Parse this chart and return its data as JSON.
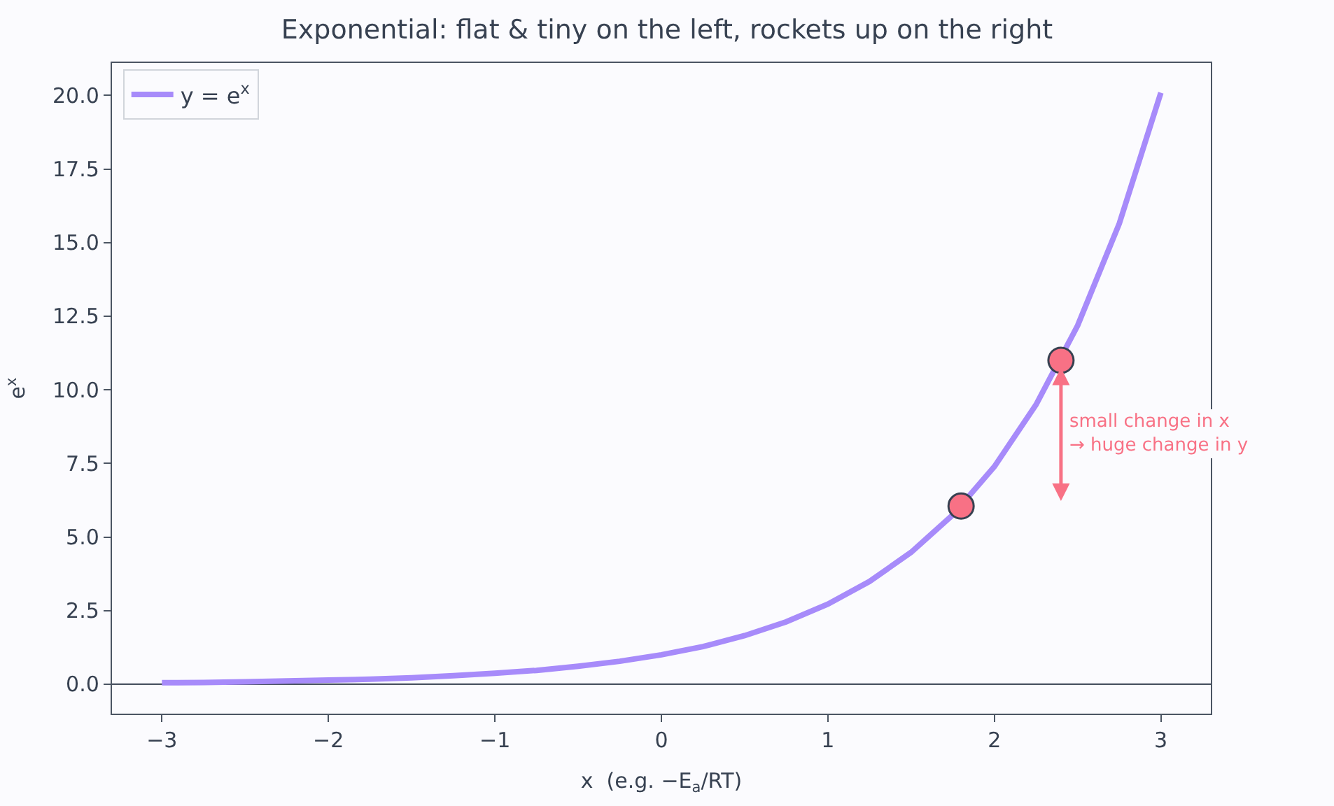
{
  "chart_data": {
    "type": "line",
    "title": "Exponential: flat & tiny on the left, rockets up on the right",
    "xlabel": "x  (e.g. −E$_{a}$/RT)",
    "ylabel": "e$^{x}$",
    "series": [
      {
        "name": "y = e$^{x}$",
        "color": "#a78bfa",
        "x": [
          -3,
          -2.75,
          -2.5,
          -2.25,
          -2,
          -1.75,
          -1.5,
          -1.25,
          -1,
          -0.75,
          -0.5,
          -0.25,
          0,
          0.25,
          0.5,
          0.75,
          1,
          1.25,
          1.5,
          1.75,
          2,
          2.25,
          2.5,
          2.75,
          3
        ],
        "values": [
          0.05,
          0.06,
          0.08,
          0.11,
          0.14,
          0.17,
          0.22,
          0.29,
          0.37,
          0.47,
          0.61,
          0.78,
          1.0,
          1.28,
          1.65,
          2.12,
          2.72,
          3.49,
          4.48,
          5.75,
          7.39,
          9.49,
          12.18,
          15.64,
          20.09
        ]
      },
      {
        "type": "scatter",
        "color": "#f87185",
        "marker": "circle",
        "x": [
          1.8,
          2.4
        ],
        "values": [
          6.05,
          11.0
        ]
      }
    ],
    "annotations": [
      "small change in x\n→ huge change in y"
    ],
    "ref_lines": [
      {
        "axis": "y",
        "value": 0,
        "color": "#4b5563"
      }
    ],
    "xlim": [
      -3.3,
      3.3
    ],
    "xticks": [
      -3,
      -2,
      -1,
      0,
      1,
      2,
      3
    ],
    "ylim": [
      -1,
      21.1
    ],
    "yticks": [
      {
        "value": 0,
        "label": "0.0"
      },
      {
        "value": 2.5,
        "label": "2.5"
      },
      {
        "value": 5,
        "label": "5.0"
      },
      {
        "value": 7.5,
        "label": "7.5"
      },
      {
        "value": 10,
        "label": "10.0"
      },
      {
        "value": 12.5,
        "label": "12.5"
      },
      {
        "value": 15,
        "label": "15.0"
      },
      {
        "value": 17.5,
        "label": "17.5"
      },
      {
        "value": 20,
        "label": "20.0"
      }
    ],
    "grid": false,
    "legend": "top left"
  }
}
